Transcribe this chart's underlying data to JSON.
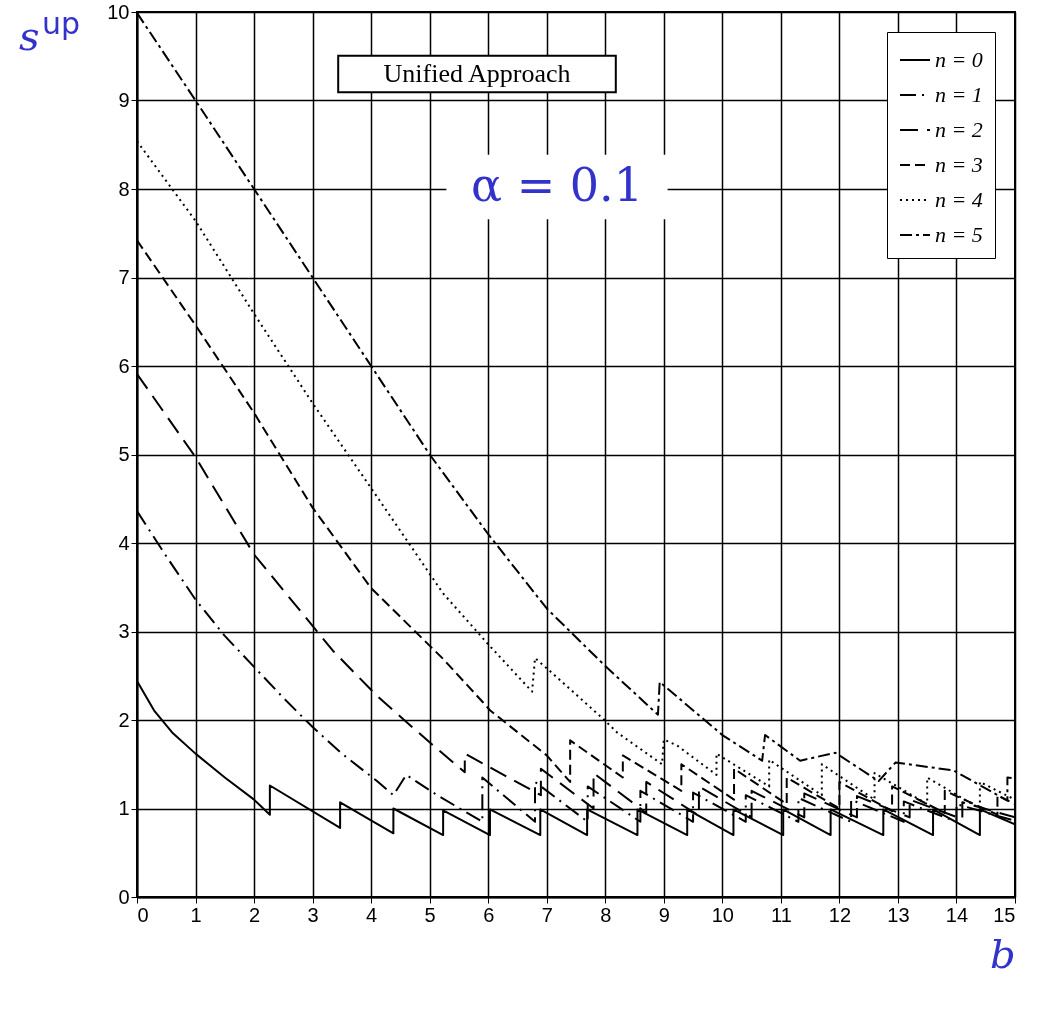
{
  "chart_data": {
    "type": "line",
    "xlabel": "b",
    "ylabel": "s$^{up}$",
    "annotations": [
      "Unified Approach",
      "α = 0.1"
    ],
    "xlim": [
      0,
      15
    ],
    "xticks": [
      0,
      1,
      2,
      3,
      4,
      5,
      6,
      7,
      8,
      9,
      10,
      11,
      12,
      13,
      14,
      15
    ],
    "ylim": [
      0,
      10
    ],
    "yticks": [
      0,
      1,
      2,
      3,
      4,
      5,
      6,
      7,
      8,
      9,
      10
    ],
    "grid": true,
    "legend": "top right",
    "marker": "none",
    "series": [
      {
        "name": "n = 0",
        "color": "#000000",
        "line_style": "solid",
        "x": [
          0,
          0.3,
          0.6,
          1,
          1.5,
          2,
          2.27,
          2.27,
          3.47,
          3.47,
          4.38,
          4.38,
          5.23,
          5.23,
          6.03,
          6.03,
          6.89,
          6.89,
          7.69,
          7.69,
          8.55,
          8.55,
          9.4,
          9.4,
          10.19,
          10.19,
          11.04,
          11.04,
          11.85,
          11.85,
          12.75,
          12.75,
          13.6,
          13.6,
          14.4,
          14.4,
          15
        ],
        "values": [
          2.44,
          2.1,
          1.86,
          1.62,
          1.35,
          1.1,
          0.93,
          1.26,
          0.78,
          1.07,
          0.72,
          1.0,
          0.7,
          0.98,
          0.7,
          0.99,
          0.7,
          0.99,
          0.7,
          0.99,
          0.7,
          0.99,
          0.7,
          0.99,
          0.7,
          0.99,
          0.7,
          0.99,
          0.7,
          0.99,
          0.7,
          0.99,
          0.7,
          0.99,
          0.7,
          0.99,
          0.82
        ]
      },
      {
        "name": "n = 1",
        "color": "#000000",
        "line_style": "longdashdot",
        "x": [
          0,
          0.5,
          1,
          1.5,
          2,
          2.5,
          3,
          3.5,
          4.1,
          4.38,
          4.6,
          5.13,
          5.9,
          5.9,
          6.8,
          6.8,
          7.7,
          7.7,
          8.6,
          8.6,
          9.5,
          9.5,
          10.4,
          10.4,
          11.3,
          11.3,
          12.2,
          12.2,
          13.1,
          13.1,
          14.0,
          14.0,
          15
        ],
        "values": [
          4.36,
          3.85,
          3.36,
          2.95,
          2.6,
          2.25,
          1.92,
          1.62,
          1.31,
          1.15,
          1.38,
          1.15,
          0.85,
          1.35,
          0.85,
          1.3,
          0.85,
          1.25,
          0.85,
          1.2,
          0.85,
          1.18,
          0.85,
          1.15,
          0.85,
          1.12,
          0.85,
          1.1,
          0.85,
          1.08,
          0.85,
          1.05,
          0.86
        ]
      },
      {
        "name": "n = 2",
        "color": "#000000",
        "line_style": "longdash",
        "x": [
          0,
          1,
          2,
          2.67,
          3.35,
          4.12,
          4.96,
          5.6,
          5.6,
          6.9,
          6.9,
          7.8,
          7.8,
          8.7,
          8.7,
          9.6,
          9.6,
          10.5,
          10.5,
          11.4,
          11.4,
          12.3,
          12.3,
          13.2,
          13.2,
          14.1,
          14.1,
          15
        ],
        "values": [
          5.91,
          4.97,
          3.87,
          3.33,
          2.78,
          2.26,
          1.77,
          1.41,
          1.62,
          1.15,
          1.45,
          1.0,
          1.4,
          0.95,
          1.3,
          0.92,
          1.25,
          0.9,
          1.2,
          0.9,
          1.17,
          0.9,
          1.14,
          0.9,
          1.1,
          0.88,
          1.07,
          0.9
        ]
      },
      {
        "name": "n = 3",
        "color": "#000000",
        "line_style": "dashed",
        "x": [
          0,
          1,
          2,
          3,
          4,
          5.23,
          5.91,
          6.03,
          7.0,
          7.4,
          7.4,
          8.3,
          8.3,
          9.3,
          9.3,
          10.2,
          10.2,
          11.1,
          11.1,
          12.0,
          12.0,
          12.9,
          12.9,
          13.8,
          13.8,
          14.7,
          14.7,
          15
        ],
        "values": [
          7.42,
          6.46,
          5.47,
          4.4,
          3.49,
          2.69,
          2.2,
          2.11,
          1.6,
          1.3,
          1.77,
          1.35,
          1.6,
          1.2,
          1.5,
          1.1,
          1.45,
          1.05,
          1.35,
          1.0,
          1.3,
          0.97,
          1.25,
          0.95,
          1.2,
          0.93,
          1.15,
          1.05
        ]
      },
      {
        "name": "n = 4",
        "color": "#000000",
        "line_style": "dotted",
        "x": [
          0,
          1,
          2,
          3,
          4,
          5.23,
          5.98,
          6.75,
          6.8,
          7.06,
          7.97,
          8.2,
          8.97,
          9.0,
          9.23,
          9.9,
          9.9,
          10.8,
          10.8,
          11.7,
          11.7,
          12.6,
          12.6,
          13.5,
          13.5,
          14.4,
          14.4,
          15
        ],
        "values": [
          8.54,
          7.64,
          6.59,
          5.58,
          4.62,
          3.43,
          2.87,
          2.32,
          2.7,
          2.55,
          2.01,
          1.86,
          1.5,
          1.78,
          1.71,
          1.38,
          1.62,
          1.25,
          1.55,
          1.15,
          1.5,
          1.1,
          1.4,
          1.05,
          1.35,
          1.0,
          1.3,
          1.1
        ]
      },
      {
        "name": "n = 5",
        "color": "#000000",
        "line_style": "dashdot",
        "x": [
          0,
          1,
          2,
          3,
          4,
          5,
          6,
          7,
          8,
          8.9,
          8.93,
          10.0,
          10.68,
          10.73,
          11.33,
          11.93,
          12.67,
          12.96,
          13.95,
          14.87,
          14.87,
          15
        ],
        "values": [
          9.99,
          9.0,
          8.0,
          7.0,
          6.0,
          5.0,
          4.1,
          3.26,
          2.61,
          2.06,
          2.43,
          1.83,
          1.54,
          1.83,
          1.54,
          1.63,
          1.31,
          1.52,
          1.43,
          1.09,
          1.35,
          1.34
        ]
      }
    ]
  }
}
